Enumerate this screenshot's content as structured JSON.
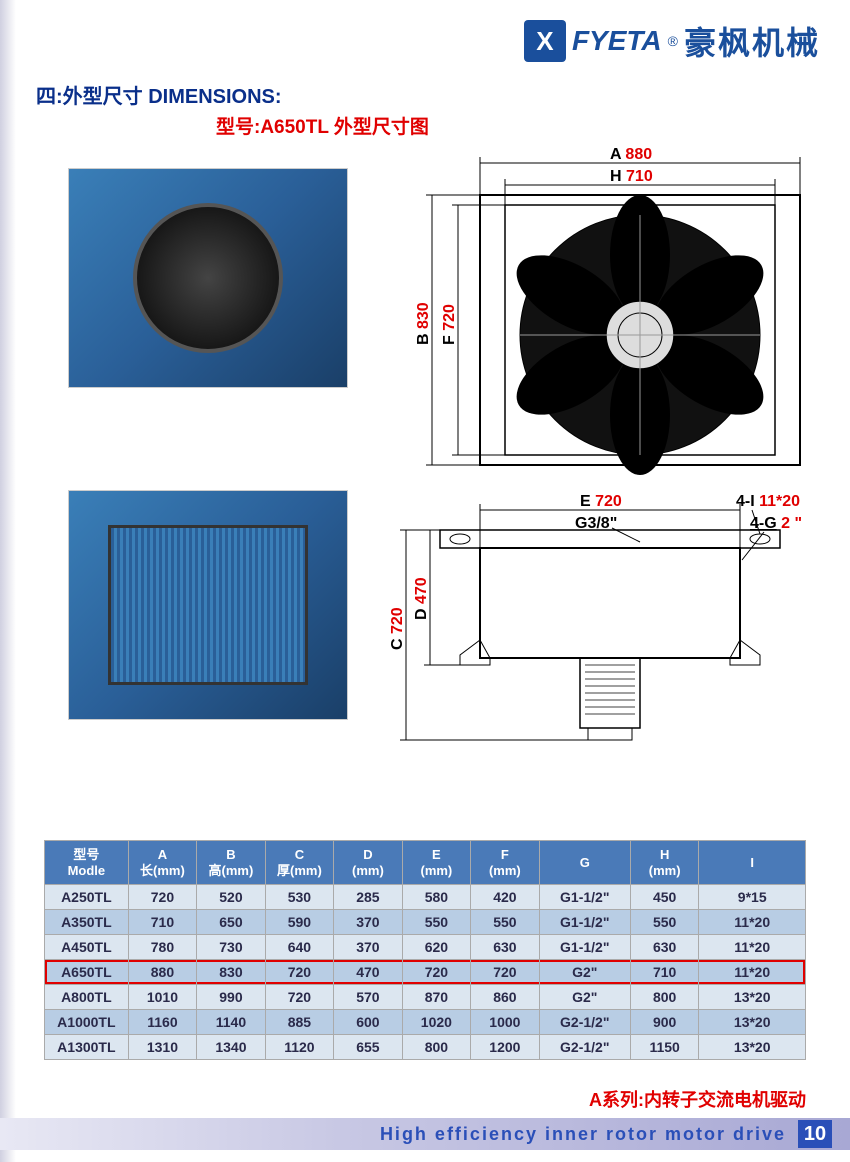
{
  "brand": {
    "logo_letter": "X",
    "latin": "FYETA",
    "reg": "®",
    "chinese": "豪枫机械"
  },
  "section_title": "四:外型尺寸 DIMENSIONS:",
  "subtitle": "型号:A650TL 外型尺寸图",
  "dimensions_front": {
    "A": {
      "letter": "A",
      "value": "880"
    },
    "H": {
      "letter": "H",
      "value": "710"
    },
    "B": {
      "letter": "B",
      "value": "830"
    },
    "F": {
      "letter": "F",
      "value": "720"
    }
  },
  "dimensions_side": {
    "E": {
      "letter": "E",
      "value": "720"
    },
    "C": {
      "letter": "C",
      "value": "720"
    },
    "D": {
      "letter": "D",
      "value": "470"
    },
    "G38": "G3/8\"",
    "I4": {
      "prefix": "4-I",
      "value": "11*20"
    },
    "G4": {
      "prefix": "4-G",
      "value": "2 \""
    }
  },
  "table": {
    "headers": [
      {
        "l1": "型号",
        "l2": "Modle"
      },
      {
        "l1": "A",
        "l2": "长(mm)"
      },
      {
        "l1": "B",
        "l2": "高(mm)"
      },
      {
        "l1": "C",
        "l2": "厚(mm)"
      },
      {
        "l1": "D",
        "l2": "(mm)"
      },
      {
        "l1": "E",
        "l2": "(mm)"
      },
      {
        "l1": "F",
        "l2": "(mm)"
      },
      {
        "l1": "G",
        "l2": ""
      },
      {
        "l1": "H",
        "l2": "(mm)"
      },
      {
        "l1": "I",
        "l2": ""
      }
    ],
    "rows": [
      {
        "highlight": false,
        "cells": [
          "A250TL",
          "720",
          "520",
          "530",
          "285",
          "580",
          "420",
          "G1-1/2\"",
          "450",
          "9*15"
        ]
      },
      {
        "highlight": false,
        "cells": [
          "A350TL",
          "710",
          "650",
          "590",
          "370",
          "550",
          "550",
          "G1-1/2\"",
          "550",
          "11*20"
        ]
      },
      {
        "highlight": false,
        "cells": [
          "A450TL",
          "780",
          "730",
          "640",
          "370",
          "620",
          "630",
          "G1-1/2\"",
          "630",
          "11*20"
        ]
      },
      {
        "highlight": true,
        "cells": [
          "A650TL",
          "880",
          "830",
          "720",
          "470",
          "720",
          "720",
          "G2\"",
          "710",
          "11*20"
        ]
      },
      {
        "highlight": false,
        "cells": [
          "A800TL",
          "1010",
          "990",
          "720",
          "570",
          "870",
          "860",
          "G2\"",
          "800",
          "13*20"
        ]
      },
      {
        "highlight": false,
        "cells": [
          "A1000TL",
          "1160",
          "1140",
          "885",
          "600",
          "1020",
          "1000",
          "G2-1/2\"",
          "900",
          "13*20"
        ]
      },
      {
        "highlight": false,
        "cells": [
          "A1300TL",
          "1310",
          "1340",
          "1120",
          "655",
          "800",
          "1200",
          "G2-1/2\"",
          "1150",
          "13*20"
        ]
      }
    ],
    "col_widths_pct": [
      11,
      9,
      9,
      9,
      9,
      9,
      9,
      12,
      9,
      14
    ],
    "header_bg": "#4a7ab8",
    "row_odd_bg": "#dce6f0",
    "row_even_bg": "#b8cde4",
    "highlight_color": "#e00000"
  },
  "footer": {
    "series_cn": "A系列:内转子交流电机驱动",
    "english": "High efficiency inner rotor motor drive",
    "page": "10"
  },
  "colors": {
    "brand_blue": "#1a4f9c",
    "title_blue": "#0a2f8a",
    "accent_red": "#e00000",
    "footer_blue": "#2a4fb8"
  }
}
